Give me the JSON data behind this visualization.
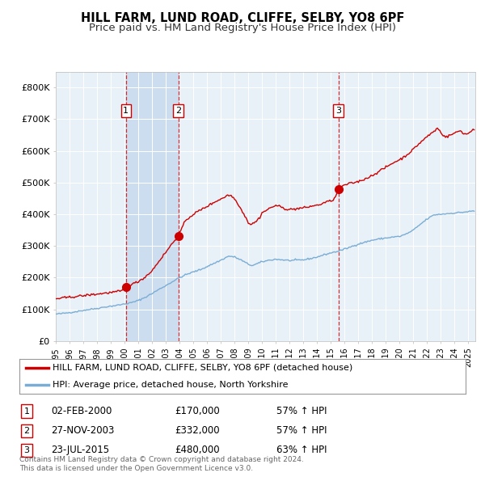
{
  "title": "HILL FARM, LUND ROAD, CLIFFE, SELBY, YO8 6PF",
  "subtitle": "Price paid vs. HM Land Registry's House Price Index (HPI)",
  "title_fontsize": 10.5,
  "subtitle_fontsize": 9.5,
  "background_color": "#ffffff",
  "plot_bg_color": "#e8f0f8",
  "grid_color": "#ffffff",
  "ylim": [
    0,
    850000
  ],
  "xlim_start": 1995.0,
  "xlim_end": 2025.5,
  "yticks": [
    0,
    100000,
    200000,
    300000,
    400000,
    500000,
    600000,
    700000,
    800000
  ],
  "ytick_labels": [
    "£0",
    "£100K",
    "£200K",
    "£300K",
    "£400K",
    "£500K",
    "£600K",
    "£700K",
    "£800K"
  ],
  "xticks": [
    1995,
    1996,
    1997,
    1998,
    1999,
    2000,
    2001,
    2002,
    2003,
    2004,
    2005,
    2006,
    2007,
    2008,
    2009,
    2010,
    2011,
    2012,
    2013,
    2014,
    2015,
    2016,
    2017,
    2018,
    2019,
    2020,
    2021,
    2022,
    2023,
    2024,
    2025
  ],
  "red_line_color": "#cc0000",
  "blue_line_color": "#7aadd4",
  "dashed_vline_color": "#cc0000",
  "sale_marker_color": "#cc0000",
  "shaded_region_color": "#ccddf0",
  "sale1": {
    "year": 2000.1,
    "price": 170000,
    "label": "1"
  },
  "sale2": {
    "year": 2003.92,
    "price": 332000,
    "label": "2"
  },
  "sale3": {
    "year": 2015.55,
    "price": 480000,
    "label": "3"
  },
  "legend_label_red": "HILL FARM, LUND ROAD, CLIFFE, SELBY, YO8 6PF (detached house)",
  "legend_label_blue": "HPI: Average price, detached house, North Yorkshire",
  "table_data": [
    {
      "num": "1",
      "date": "02-FEB-2000",
      "price": "£170,000",
      "hpi": "57% ↑ HPI"
    },
    {
      "num": "2",
      "date": "27-NOV-2003",
      "price": "£332,000",
      "hpi": "57% ↑ HPI"
    },
    {
      "num": "3",
      "date": "23-JUL-2015",
      "price": "£480,000",
      "hpi": "63% ↑ HPI"
    }
  ],
  "footer_line1": "Contains HM Land Registry data © Crown copyright and database right 2024.",
  "footer_line2": "This data is licensed under the Open Government Licence v3.0.",
  "label_box_color": "#ffffff",
  "label_box_edge_color": "#cc0000"
}
